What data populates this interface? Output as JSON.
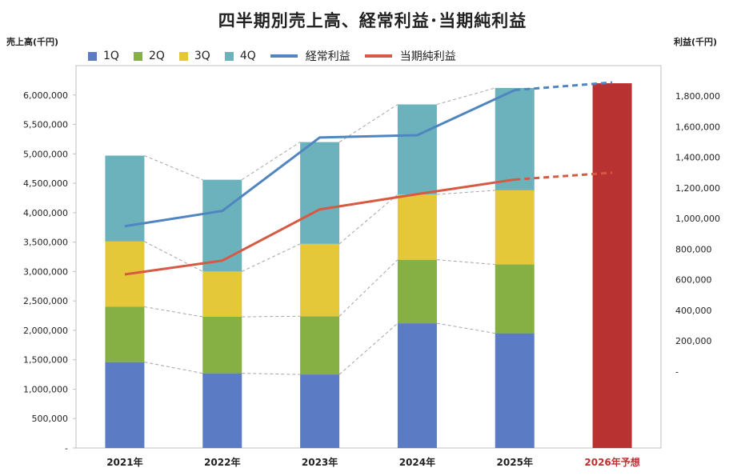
{
  "title": "四半期別売上高、経常利益･当期純利益",
  "left_axis_title": "売上高(千円)",
  "right_axis_title": "利益(千円)",
  "legend": {
    "q1": "1Q",
    "q2": "2Q",
    "q3": "3Q",
    "q4": "4Q",
    "ordinary": "経常利益",
    "net": "当期純利益"
  },
  "colors": {
    "q1": "#5b7bc4",
    "q2": "#86b043",
    "q3": "#e5c83a",
    "q4": "#6cb2bd",
    "forecast_bar": "#b83232",
    "ordinary": "#4f86c0",
    "net": "#d65a42",
    "forecast_label": "#b83232"
  },
  "chart_data": {
    "type": "bar",
    "stacked": true,
    "categories": [
      "2021年",
      "2022年",
      "2023年",
      "2024年",
      "2025年",
      "2026年予想"
    ],
    "series": [
      {
        "name": "1Q",
        "axis": "left",
        "values": [
          1460000,
          1270000,
          1250000,
          2120000,
          1950000,
          null
        ]
      },
      {
        "name": "2Q",
        "axis": "left",
        "values": [
          940000,
          960000,
          990000,
          1080000,
          1170000,
          null
        ]
      },
      {
        "name": "3Q",
        "axis": "left",
        "values": [
          1110000,
          770000,
          1230000,
          1110000,
          1260000,
          null
        ]
      },
      {
        "name": "4Q",
        "axis": "left",
        "values": [
          1460000,
          1560000,
          1730000,
          1530000,
          1740000,
          null
        ]
      },
      {
        "name": "2026年予想",
        "axis": "left",
        "values": [
          null,
          null,
          null,
          null,
          null,
          6200000
        ]
      }
    ],
    "lines": [
      {
        "name": "経常利益",
        "axis": "right",
        "values": [
          950000,
          1050000,
          1530000,
          1545000,
          1840000,
          1890000
        ],
        "forecast_from_index": 4
      },
      {
        "name": "当期純利益",
        "axis": "right",
        "values": [
          635000,
          725000,
          1060000,
          1160000,
          1255000,
          1300000
        ],
        "forecast_from_index": 4
      }
    ],
    "left_axis": {
      "min": 0,
      "max": 6500000,
      "ticks": [
        0,
        500000,
        1000000,
        1500000,
        2000000,
        2500000,
        3000000,
        3500000,
        4000000,
        4500000,
        5000000,
        5500000,
        6000000
      ],
      "tick_labels": [
        "-",
        "500,000",
        "1,000,000",
        "1,500,000",
        "2,000,000",
        "2,500,000",
        "3,000,000",
        "3,500,000",
        "4,000,000",
        "4,500,000",
        "5,000,000",
        "5,500,000",
        "6,000,000"
      ]
    },
    "right_axis": {
      "min": -500000,
      "max": 2000000,
      "ticks": [
        0,
        200000,
        400000,
        600000,
        800000,
        1000000,
        1200000,
        1400000,
        1600000,
        1800000
      ],
      "tick_labels": [
        "-",
        "200,000",
        "400,000",
        "600,000",
        "800,000",
        "1,000,000",
        "1,200,000",
        "1,400,000",
        "1,600,000",
        "1,800,000"
      ]
    },
    "grid": false,
    "legend_position": "top-left"
  }
}
